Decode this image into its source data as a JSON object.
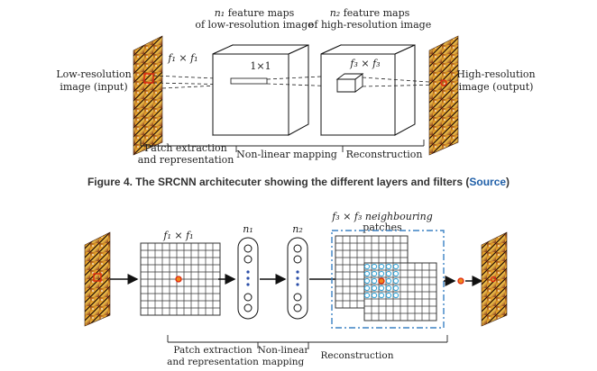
{
  "top_diagram": {
    "n1_header_math": "n₁",
    "n1_header_rest": " feature maps",
    "n1_header_line2": "of low-resolution image",
    "n2_header_math": "n₂",
    "n2_header_rest": " feature maps",
    "n2_header_line2": "of high-resolution image",
    "input_label_line1": "Low-resolution",
    "input_label_line2": "image (input)",
    "output_label_line1": "High-resolution",
    "output_label_line2": "image (output)",
    "f1_label": "f₁ × f₁",
    "one_by_one": "1×1",
    "f3_label": "f₃ × f₃",
    "stage1_line1": "Patch extraction",
    "stage1_line2": "and representation",
    "stage2": "Non-linear mapping",
    "stage3": "Reconstruction"
  },
  "caption": {
    "text": "Figure 4. The SRCNN architecuter showing the different layers and filters (",
    "link": "Source",
    "close": ")"
  },
  "bottom_diagram": {
    "f1_label": "f₁ × f₁",
    "n1_label": "n₁",
    "n2_label": "n₂",
    "neighbour_line1": "f₃ × f₃ neighbouring",
    "neighbour_line2": "patches",
    "stage1_line1": "Patch extraction",
    "stage1_line2": "and representation",
    "stage2_line1": "Non-linear",
    "stage2_line2": "mapping",
    "stage3": "Reconstruction"
  },
  "colors": {
    "accent_red": "#e02810",
    "center_orange": "#f08a1c",
    "cyan_circle": "#3aa6d8",
    "dashed_box": "#3b82c4",
    "source_link": "#1f5fa8",
    "grid": "#333333"
  }
}
